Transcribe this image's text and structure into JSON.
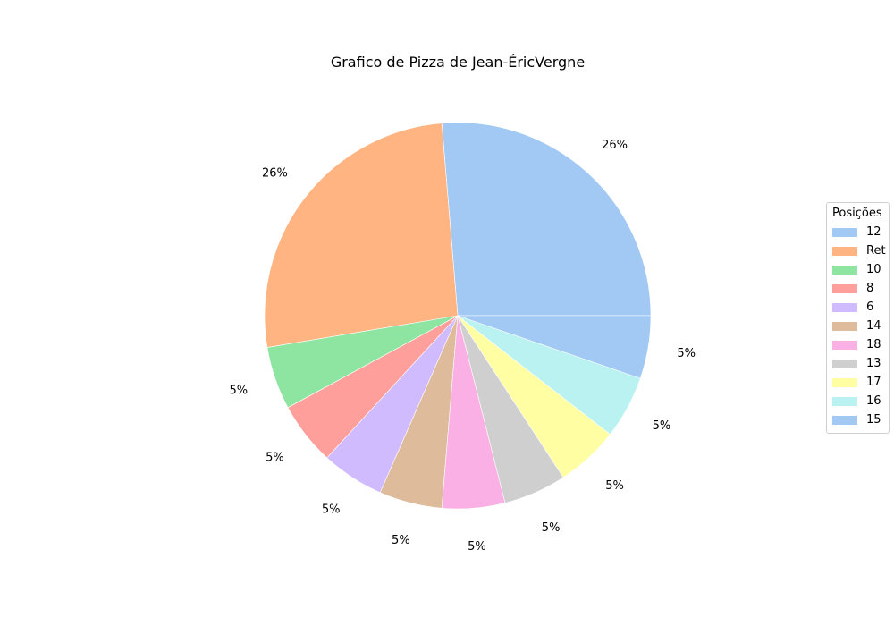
{
  "chart_data": {
    "type": "pie",
    "title": "Grafico de Pizza de Jean-ÉricVergne",
    "categories": [
      "12",
      "Ret",
      "10",
      "8",
      "6",
      "14",
      "18",
      "13",
      "17",
      "16",
      "15"
    ],
    "values": [
      5,
      5,
      1,
      1,
      1,
      1,
      1,
      1,
      1,
      1,
      1
    ],
    "percent_labels": [
      "26%",
      "26%",
      "5%",
      "5%",
      "5%",
      "5%",
      "5%",
      "5%",
      "5%",
      "5%",
      "5%"
    ],
    "colors": [
      "#a1c9f4",
      "#ffb482",
      "#8de5a1",
      "#ff9f9b",
      "#d0bbff",
      "#debb9b",
      "#fab0e4",
      "#cfcfcf",
      "#fffea3",
      "#b9f2f0",
      "#a1c9f4"
    ],
    "start_angle_deg": 0,
    "direction": "counterclockwise",
    "legend": {
      "title": "Posições",
      "placement": "center-right"
    }
  }
}
